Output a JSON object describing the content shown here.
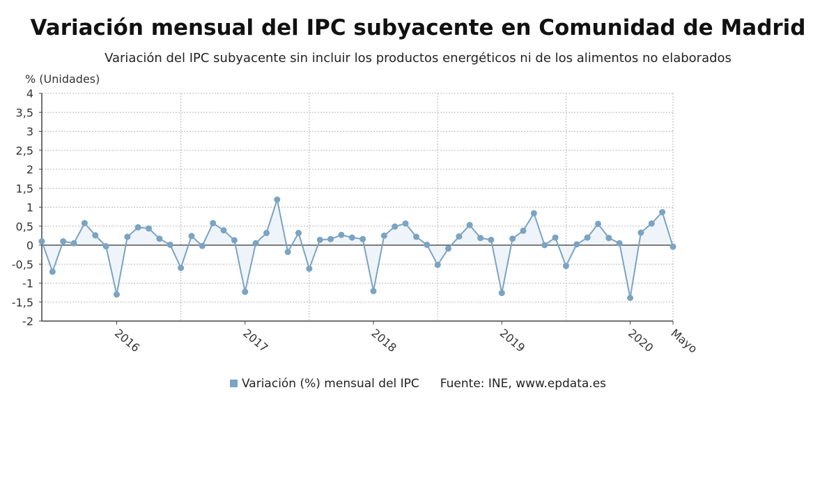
{
  "title": "Variación mensual del IPC subyacente en Comunidad de Madrid",
  "subtitle": "Variación del IPC subyacente sin incluir los productos energéticos ni de los alimentos no elaborados",
  "legend": {
    "series_label": "Variación (%) mensual del IPC",
    "source": "Fuente: INE, www.epdata.es"
  },
  "colors": {
    "line": "#7ba3c2",
    "fill": "#eef4f9",
    "zero_line": "#333333",
    "grid": "#b8b8b8"
  },
  "chart_data": {
    "type": "area",
    "title": "Variación mensual del IPC subyacente en Comunidad de Madrid",
    "subtitle": "Variación del IPC subyacente sin incluir los productos energéticos ni de los alimentos no elaborados",
    "ylabel": "% (Unidades)",
    "ylim": [
      -2,
      4
    ],
    "yticks": [
      4,
      3.5,
      3,
      2.5,
      2,
      1.5,
      1,
      0.5,
      0,
      -0.5,
      -1,
      -1.5,
      -2
    ],
    "ytick_labels": [
      "4",
      "3,5",
      "3",
      "2,5",
      "2",
      "1,5",
      "1",
      "0,5",
      "0",
      "-0,5",
      "-1",
      "-1,5",
      "-2"
    ],
    "x_labels": [
      {
        "text": "2016",
        "index": 7
      },
      {
        "text": "2017",
        "index": 19
      },
      {
        "text": "2018",
        "index": 31
      },
      {
        "text": "2019",
        "index": 43
      },
      {
        "text": "2020",
        "index": 55
      },
      {
        "text": "Mayo",
        "index": 59
      }
    ],
    "grid": true,
    "legend_position": "bottom",
    "series": [
      {
        "name": "Variación (%) mensual del IPC",
        "start": "2015-06",
        "values": [
          0.1,
          -0.7,
          0.1,
          0.05,
          0.58,
          0.26,
          -0.03,
          -1.3,
          0.22,
          0.47,
          0.44,
          0.17,
          0.01,
          -0.6,
          0.24,
          -0.02,
          0.58,
          0.39,
          0.13,
          -1.23,
          0.05,
          0.32,
          1.2,
          -0.18,
          0.32,
          -0.62,
          0.14,
          0.16,
          0.27,
          0.2,
          0.16,
          -1.21,
          0.25,
          0.49,
          0.57,
          0.22,
          0.01,
          -0.52,
          -0.09,
          0.23,
          0.53,
          0.19,
          0.14,
          -1.26,
          0.17,
          0.38,
          0.84,
          0.0,
          0.2,
          -0.55,
          0.02,
          0.2,
          0.56,
          0.19,
          0.05,
          -1.39,
          0.33,
          0.57,
          0.87,
          -0.04
        ]
      }
    ]
  }
}
